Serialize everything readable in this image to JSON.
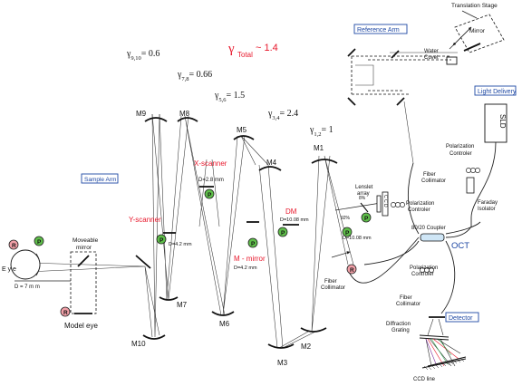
{
  "labels": {
    "translation_stage": "Translation Stage",
    "mirror": "Mirror",
    "reference_arm": "Reference Arm",
    "water_cuvet": "Water\nCuvet",
    "light_delivery": "Light Delivery",
    "sld": "SLD",
    "polarization_controller_top": "Polarization\nControler",
    "fiber_collimator_ref": "Fiber\nCollimator",
    "polarization_controller_mid": "Polarization\nControler",
    "faraday_isolator": "Faraday\nIsolator",
    "coupler": "80/20 Coupler",
    "oct": "OCT",
    "polarization_controller_low": "Polarization\nControler",
    "fiber_collimator_det": "Fiber\nCollimator",
    "detector": "Detector",
    "diffraction_grating": "Diffraction\nGrating",
    "ccd_line": "CCD line",
    "sample_arm": "Sample Arm",
    "gamma_total": "γ",
    "gamma_total_sub": "Total",
    "gamma_total_val": "~ 1.4",
    "lenslet_array": "Lenslet\narray",
    "ccd": "C C D",
    "pct_8": "8%",
    "pct_92": "92%",
    "fiber_collimator_sample": "Fiber\nCollimator",
    "dm": "DM",
    "d_dm": "D=10.08 mm",
    "d_m1": "D=10.08 mm",
    "x_scanner": "X-scanner",
    "d_x": "D=2.8 mm",
    "y_scanner": "Y-scanner",
    "d_y": "D=4.2 mm",
    "m_mirror": "M - mirror",
    "d_m": "D=4.2 mm",
    "moveable_mirror": "Moveable\nmirror",
    "eye": "E y e",
    "d_eye": "D = 7  m m",
    "model_eye": "Model eye",
    "p": "P",
    "r": "R"
  },
  "gammas": [
    {
      "sub": "9,10",
      "val": "= 0.6"
    },
    {
      "sub": "7,8",
      "val": "= 0.66"
    },
    {
      "sub": "5,6",
      "val": "= 1.5"
    },
    {
      "sub": "3,4",
      "val": "= 2.4"
    },
    {
      "sub": "1,2",
      "val": "= 1"
    }
  ],
  "mirrors": [
    "M1",
    "M2",
    "M3",
    "M4",
    "M5",
    "M6",
    "M7",
    "M8",
    "M9",
    "M10"
  ]
}
